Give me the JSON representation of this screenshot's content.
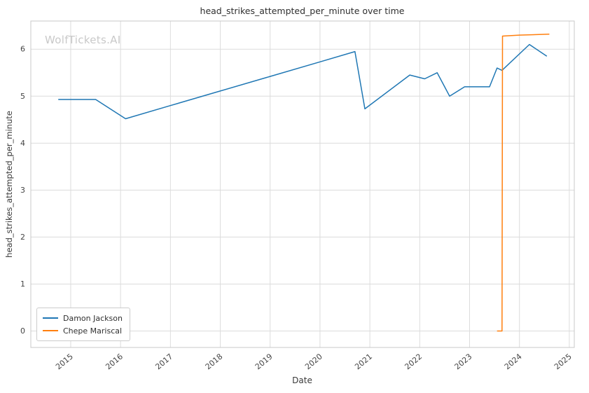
{
  "watermark": "WolfTickets.AI",
  "chart_data": {
    "type": "line",
    "title": "head_strikes_attempted_per_minute over time",
    "xlabel": "Date",
    "ylabel": "head_strikes_attempted_per_minute",
    "xlim": [
      2014.2,
      2025.1
    ],
    "ylim": [
      -0.35,
      6.6
    ],
    "x_ticks": [
      2015,
      2016,
      2017,
      2018,
      2019,
      2020,
      2021,
      2022,
      2023,
      2024,
      2025
    ],
    "y_ticks": [
      0,
      1,
      2,
      3,
      4,
      5,
      6
    ],
    "grid": true,
    "legend_position": "lower left",
    "background_color": "#ffffff",
    "grid_color": "#dcdcdc",
    "spine_color": "#c8c8c8",
    "tick_label_color": "#444444",
    "series": [
      {
        "name": "Damon Jackson",
        "color": "#1f77b4",
        "points": [
          [
            2014.75,
            4.93
          ],
          [
            2015.5,
            4.93
          ],
          [
            2016.1,
            4.52
          ],
          [
            2017.0,
            4.8
          ],
          [
            2018.0,
            5.11
          ],
          [
            2019.0,
            5.42
          ],
          [
            2020.0,
            5.73
          ],
          [
            2020.7,
            5.95
          ],
          [
            2020.9,
            4.73
          ],
          [
            2021.8,
            5.45
          ],
          [
            2022.1,
            5.37
          ],
          [
            2022.35,
            5.5
          ],
          [
            2022.6,
            5.0
          ],
          [
            2022.9,
            5.2
          ],
          [
            2023.4,
            5.2
          ],
          [
            2023.55,
            5.6
          ],
          [
            2023.65,
            5.55
          ],
          [
            2024.2,
            6.1
          ],
          [
            2024.55,
            5.85
          ]
        ]
      },
      {
        "name": "Chepe Mariscal",
        "color": "#ff7f0e",
        "points": [
          [
            2023.55,
            0.0
          ],
          [
            2023.65,
            0.0
          ],
          [
            2023.66,
            6.28
          ],
          [
            2024.0,
            6.3
          ],
          [
            2024.6,
            6.32
          ]
        ]
      }
    ]
  }
}
